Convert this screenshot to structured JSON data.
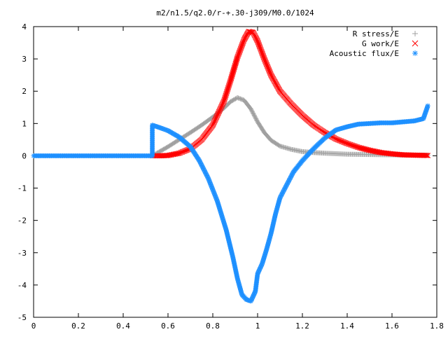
{
  "chart_data": {
    "type": "scatter",
    "title": "m2/n1.5/q2.0/r-+.30-j309/M0.0/1024",
    "xlabel": "",
    "ylabel": "",
    "xlim": [
      0,
      1.8
    ],
    "ylim": [
      -5,
      4
    ],
    "x_ticks": [
      "0",
      "0.2",
      "0.4",
      "0.6",
      "0.8",
      "1",
      "1.2",
      "1.4",
      "1.6",
      "1.8"
    ],
    "y_ticks": [
      "4",
      "3",
      "2",
      "1",
      "0",
      "-1",
      "-2",
      "-3",
      "-4",
      "-5"
    ],
    "grid": false,
    "legend_position": "top-right",
    "series": [
      {
        "name": "R stress/E",
        "marker": "plus",
        "color": "#a0a0a0",
        "x": [
          0.53,
          0.56,
          0.6,
          0.65,
          0.7,
          0.75,
          0.8,
          0.85,
          0.88,
          0.91,
          0.94,
          0.97,
          1.0,
          1.03,
          1.06,
          1.1,
          1.15,
          1.2,
          1.25,
          1.3,
          1.4,
          1.5,
          1.6,
          1.7,
          1.76
        ],
        "y": [
          0.0,
          0.12,
          0.28,
          0.5,
          0.72,
          0.95,
          1.2,
          1.48,
          1.68,
          1.8,
          1.72,
          1.45,
          1.05,
          0.72,
          0.48,
          0.3,
          0.2,
          0.13,
          0.1,
          0.08,
          0.05,
          0.04,
          0.03,
          0.02,
          0.02
        ]
      },
      {
        "name": "G work/E",
        "marker": "cross",
        "color": "#ff0000",
        "x": [
          0.53,
          0.56,
          0.6,
          0.65,
          0.7,
          0.75,
          0.8,
          0.85,
          0.88,
          0.91,
          0.94,
          0.96,
          0.98,
          1.0,
          1.03,
          1.06,
          1.1,
          1.15,
          1.2,
          1.25,
          1.3,
          1.35,
          1.4,
          1.45,
          1.5,
          1.55,
          1.6,
          1.65,
          1.7,
          1.76
        ],
        "y": [
          0.0,
          0.0,
          0.01,
          0.08,
          0.22,
          0.5,
          0.95,
          1.7,
          2.35,
          3.05,
          3.6,
          3.85,
          3.82,
          3.55,
          3.0,
          2.5,
          2.0,
          1.6,
          1.25,
          0.95,
          0.72,
          0.52,
          0.38,
          0.26,
          0.17,
          0.1,
          0.06,
          0.03,
          0.02,
          0.01
        ]
      },
      {
        "name": "Acoustic flux/E",
        "marker": "star",
        "color": "#1e90ff",
        "x": [
          0.0,
          0.1,
          0.2,
          0.3,
          0.4,
          0.5,
          0.53,
          0.53,
          0.56,
          0.6,
          0.65,
          0.7,
          0.74,
          0.78,
          0.82,
          0.86,
          0.89,
          0.91,
          0.93,
          0.95,
          0.97,
          0.99,
          1.0,
          1.02,
          1.04,
          1.06,
          1.08,
          1.1,
          1.13,
          1.16,
          1.2,
          1.25,
          1.3,
          1.35,
          1.4,
          1.45,
          1.5,
          1.55,
          1.6,
          1.65,
          1.7,
          1.74,
          1.76
        ],
        "y": [
          0.0,
          0.0,
          0.0,
          0.0,
          0.0,
          0.0,
          0.0,
          0.95,
          0.88,
          0.78,
          0.58,
          0.28,
          -0.15,
          -0.7,
          -1.4,
          -2.3,
          -3.15,
          -3.8,
          -4.3,
          -4.45,
          -4.5,
          -4.2,
          -3.65,
          -3.35,
          -2.9,
          -2.4,
          -1.8,
          -1.3,
          -0.9,
          -0.5,
          -0.15,
          0.22,
          0.55,
          0.8,
          0.9,
          0.98,
          1.0,
          1.02,
          1.02,
          1.05,
          1.08,
          1.15,
          1.55
        ]
      }
    ]
  }
}
